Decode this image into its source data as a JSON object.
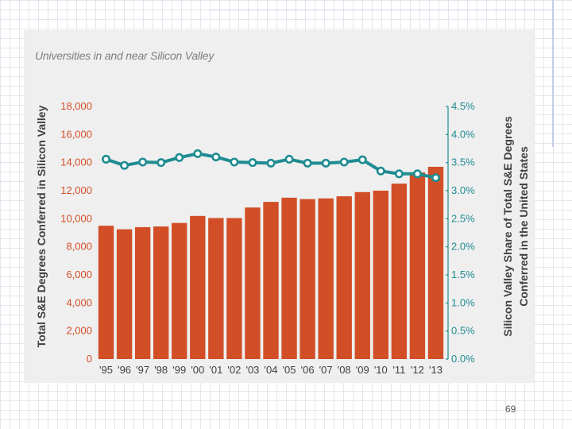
{
  "page_number": "69",
  "chart_data": {
    "type": "bar+line",
    "title": "Universities in and near Silicon Valley",
    "categories": [
      "'95",
      "'96",
      "'97",
      "'98",
      "'99",
      "'00",
      "'01",
      "'02",
      "'03",
      "'04",
      "'05",
      "'06",
      "'07",
      "'08",
      "'09",
      "'10",
      "'11",
      "'12",
      "'13"
    ],
    "series": [
      {
        "name": "Total S&E Degrees Conferred in Silicon Valley",
        "type": "bar",
        "axis": "left",
        "values": [
          9500,
          9250,
          9400,
          9450,
          9700,
          10200,
          10050,
          10050,
          10800,
          11200,
          11500,
          11400,
          11450,
          11600,
          11900,
          12000,
          12500,
          13300,
          13700
        ]
      },
      {
        "name": "Silicon Valley Share of Total S&E Degrees Conferred in the United States",
        "type": "line",
        "axis": "right",
        "values": [
          3.56,
          3.45,
          3.51,
          3.5,
          3.59,
          3.66,
          3.6,
          3.51,
          3.5,
          3.49,
          3.56,
          3.49,
          3.49,
          3.51,
          3.55,
          3.35,
          3.3,
          3.3,
          3.23
        ]
      }
    ],
    "ylabel": "Total S&E Degrees Conferred in Silicon Valley",
    "y2label_line1": "Silicon Valley Share of Total S&E Degrees",
    "y2label_line2": "Conferred in the United States",
    "ylim": [
      0,
      18000
    ],
    "y2lim": [
      0,
      4.5
    ],
    "yticks": [
      "0",
      "2,000",
      "4,000",
      "6,000",
      "8,000",
      "10,000",
      "12,000",
      "14,000",
      "16,000",
      "18,000"
    ],
    "y2ticks": [
      "0.0%",
      "0.5%",
      "1.0%",
      "1.5%",
      "2.0%",
      "2.5%",
      "3.0%",
      "3.5%",
      "4.0%",
      "4.5%"
    ],
    "colors": {
      "bar": "#d24e26",
      "line": "#1f8c91",
      "left_axis": "#d24e26",
      "right_axis": "#1f8c91",
      "text": "#404040"
    }
  }
}
